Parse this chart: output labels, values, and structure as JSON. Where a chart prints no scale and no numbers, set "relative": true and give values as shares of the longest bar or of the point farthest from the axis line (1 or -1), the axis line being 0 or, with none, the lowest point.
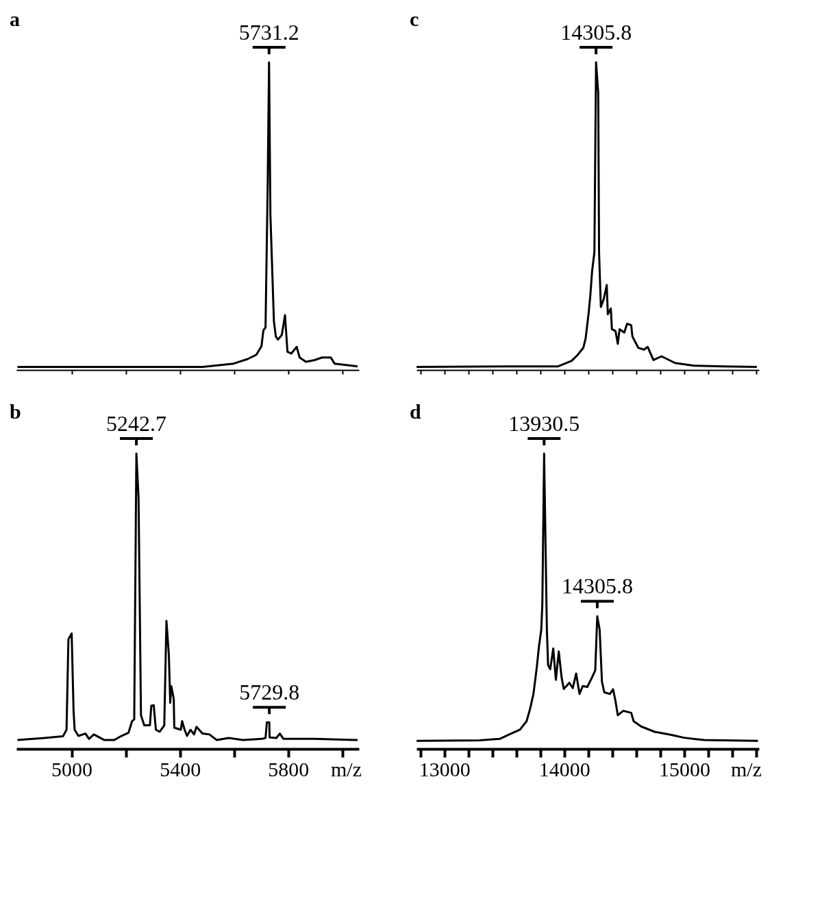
{
  "chart_data": [
    {
      "type": "line",
      "title": "a",
      "relative": true,
      "color": "#000000",
      "line_style": "solid",
      "marker": "none",
      "grid": false,
      "legend": false,
      "tick_labels": false,
      "xlim": [
        4795,
        6060
      ],
      "xticks": [
        5000,
        {
          "value": 5200,
          "label": null
        },
        5400,
        {
          "value": 5600,
          "label": null
        },
        5800,
        {
          "value": 6000,
          "label": null
        }
      ],
      "x": [
        4799,
        5200,
        5482,
        5597,
        5649,
        5681,
        5700,
        5707,
        5715,
        5723,
        5728,
        5733,
        5746,
        5753,
        5761,
        5775,
        5787,
        5796,
        5810,
        5830,
        5841,
        5864,
        5894,
        5924,
        5956,
        5970,
        6055
      ],
      "values": [
        0,
        0,
        0,
        0.011,
        0.026,
        0.04,
        0.068,
        0.12,
        0.13,
        0.6,
        1.0,
        0.5,
        0.15,
        0.1,
        0.09,
        0.105,
        0.17,
        0.05,
        0.044,
        0.066,
        0.031,
        0.017,
        0.022,
        0.031,
        0.031,
        0.011,
        0.002
      ],
      "annotations": [
        {
          "text": "5731.2",
          "x": 5728,
          "y": 1.0
        }
      ]
    },
    {
      "type": "line",
      "title": "b",
      "relative": true,
      "color": "#000000",
      "line_style": "solid",
      "marker": "none",
      "grid": false,
      "legend": false,
      "tick_labels": "x",
      "xlabel": "m/z",
      "xlim": [
        4795,
        6060
      ],
      "xticks": [
        5000,
        {
          "value": 5200,
          "label": null
        },
        5400,
        {
          "value": 5600,
          "label": null
        },
        5800,
        {
          "value": 6000,
          "label": null
        }
      ],
      "x": [
        4799,
        4900,
        4967,
        4980,
        4987,
        4999,
        5006,
        5010,
        5024,
        5050,
        5063,
        5081,
        5120,
        5156,
        5183,
        5209,
        5222,
        5230,
        5238,
        5246,
        5255,
        5267,
        5288,
        5293,
        5302,
        5310,
        5324,
        5341,
        5349,
        5358,
        5363,
        5367,
        5376,
        5378,
        5402,
        5407,
        5416,
        5425,
        5438,
        5451,
        5460,
        5482,
        5508,
        5535,
        5579,
        5632,
        5702,
        5715,
        5720,
        5729,
        5730,
        5755,
        5768,
        5781,
        5896,
        6055
      ],
      "values": [
        0.03,
        0.037,
        0.043,
        0.065,
        0.371,
        0.391,
        0.128,
        0.065,
        0.044,
        0.052,
        0.034,
        0.049,
        0.03,
        0.03,
        0.044,
        0.055,
        0.094,
        0.1,
        1.0,
        0.85,
        0.114,
        0.08,
        0.08,
        0.146,
        0.148,
        0.065,
        0.058,
        0.08,
        0.433,
        0.318,
        0.156,
        0.212,
        0.17,
        0.072,
        0.065,
        0.094,
        0.065,
        0.044,
        0.065,
        0.049,
        0.075,
        0.052,
        0.049,
        0.03,
        0.037,
        0.03,
        0.034,
        0.037,
        0.09,
        0.09,
        0.039,
        0.037,
        0.052,
        0.034,
        0.034,
        0.03
      ],
      "annotations": [
        {
          "text": "5242.7",
          "x": 5238,
          "y": 1.0
        },
        {
          "text": "5729.8",
          "x": 5729,
          "y": 0.09
        }
      ]
    },
    {
      "type": "line",
      "title": "c",
      "relative": true,
      "color": "#000000",
      "line_style": "solid",
      "marker": "none",
      "grid": false,
      "legend": false,
      "tick_labels": false,
      "xlim": [
        12765,
        15620
      ],
      "xticks": [
        {
          "value": 12800,
          "label": null
        },
        13000,
        {
          "value": 13200,
          "label": null
        },
        {
          "value": 13400,
          "label": null
        },
        {
          "value": 13600,
          "label": null
        },
        {
          "value": 13800,
          "label": null
        },
        14000,
        {
          "value": 14200,
          "label": null
        },
        {
          "value": 14400,
          "label": null
        },
        {
          "value": 14600,
          "label": null
        },
        {
          "value": 14800,
          "label": null
        },
        15000,
        {
          "value": 15200,
          "label": null
        },
        {
          "value": 15400,
          "label": null
        },
        {
          "value": 15600,
          "label": null
        }
      ],
      "x": [
        12766,
        13500,
        13946,
        14058,
        14107,
        14156,
        14175,
        14199,
        14214,
        14229,
        14248,
        14253,
        14262,
        14280,
        14287,
        14302,
        14326,
        14351,
        14360,
        14385,
        14394,
        14424,
        14443,
        14458,
        14497,
        14521,
        14555,
        14565,
        14614,
        14662,
        14692,
        14740,
        14808,
        14920,
        15081,
        15325,
        15602
      ],
      "values": [
        0,
        0.002,
        0.002,
        0.02,
        0.039,
        0.063,
        0.094,
        0.173,
        0.234,
        0.315,
        0.376,
        0.6,
        1.0,
        0.9,
        0.376,
        0.197,
        0.223,
        0.269,
        0.173,
        0.192,
        0.124,
        0.118,
        0.076,
        0.124,
        0.113,
        0.142,
        0.137,
        0.1,
        0.063,
        0.057,
        0.066,
        0.023,
        0.035,
        0.013,
        0.004,
        0.002,
        0
      ],
      "annotations": [
        {
          "text": "14305.8",
          "x": 14262,
          "y": 1.0
        }
      ]
    },
    {
      "type": "line",
      "title": "d",
      "relative": true,
      "color": "#000000",
      "line_style": "solid",
      "marker": "none",
      "grid": false,
      "legend": false,
      "tick_labels": "x",
      "xlabel": "m/z",
      "xlim": [
        12765,
        15620
      ],
      "xticks": [
        {
          "value": 12800,
          "label": null
        },
        13000,
        {
          "value": 13200,
          "label": null
        },
        {
          "value": 13400,
          "label": null
        },
        {
          "value": 13600,
          "label": null
        },
        {
          "value": 13800,
          "label": null
        },
        14000,
        {
          "value": 14200,
          "label": null
        },
        {
          "value": 14400,
          "label": null
        },
        {
          "value": 14600,
          "label": null
        },
        {
          "value": 14800,
          "label": null
        },
        15000,
        {
          "value": 15200,
          "label": null
        },
        {
          "value": 15400,
          "label": null
        },
        {
          "value": 15600,
          "label": null
        }
      ],
      "x": [
        12766,
        13288,
        13459,
        13532,
        13627,
        13683,
        13712,
        13740,
        13768,
        13786,
        13805,
        13814,
        13829,
        13852,
        13862,
        13880,
        13905,
        13927,
        13951,
        13975,
        13993,
        14039,
        14068,
        14096,
        14124,
        14151,
        14189,
        14227,
        14255,
        14272,
        14292,
        14311,
        14330,
        14377,
        14404,
        14423,
        14443,
        14489,
        14555,
        14575,
        14638,
        14750,
        14882,
        14994,
        15164,
        15612
      ],
      "values": [
        0.027,
        0.029,
        0.034,
        0.048,
        0.065,
        0.094,
        0.136,
        0.186,
        0.277,
        0.347,
        0.403,
        0.488,
        1.0,
        0.403,
        0.284,
        0.27,
        0.34,
        0.234,
        0.33,
        0.241,
        0.203,
        0.224,
        0.206,
        0.255,
        0.186,
        0.213,
        0.21,
        0.241,
        0.266,
        0.449,
        0.403,
        0.228,
        0.192,
        0.186,
        0.202,
        0.164,
        0.114,
        0.129,
        0.122,
        0.094,
        0.076,
        0.058,
        0.048,
        0.038,
        0.03,
        0.027
      ],
      "annotations": [
        {
          "text": "13930.5",
          "x": 13829,
          "y": 1.0
        },
        {
          "text": "14305.8",
          "x": 14272,
          "y": 0.449
        }
      ]
    }
  ]
}
